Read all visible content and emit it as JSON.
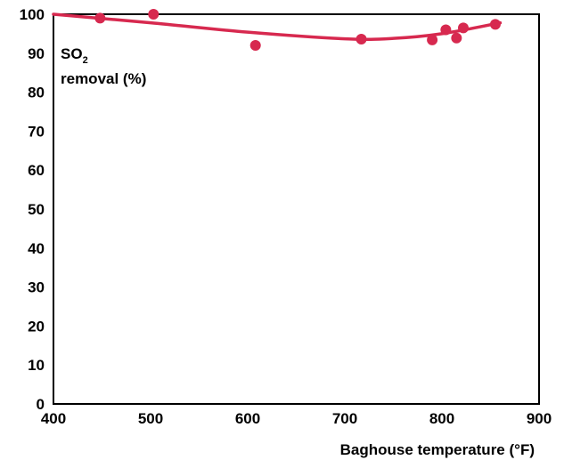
{
  "chart_data": {
    "type": "scatter",
    "xlabel": "Baghouse temperature (°F)",
    "ylabel_prefix": "SO",
    "ylabel_subscript": "2",
    "ylabel_line2": "removal (%)",
    "xlim": [
      400,
      900
    ],
    "ylim": [
      0,
      100
    ],
    "xticks": [
      400,
      500,
      600,
      700,
      800,
      900
    ],
    "yticks": [
      0,
      10,
      20,
      30,
      40,
      50,
      60,
      70,
      80,
      90,
      100
    ],
    "grid": false,
    "series": [
      {
        "color": "#d7294f",
        "points": [
          {
            "x": 448,
            "y": 99
          },
          {
            "x": 503,
            "y": 100
          },
          {
            "x": 608,
            "y": 92
          },
          {
            "x": 717,
            "y": 93.6
          },
          {
            "x": 790,
            "y": 93.4
          },
          {
            "x": 804,
            "y": 96
          },
          {
            "x": 815,
            "y": 93.9
          },
          {
            "x": 822,
            "y": 96.5
          },
          {
            "x": 855,
            "y": 97.4
          }
        ]
      }
    ],
    "trend": {
      "color": "#d7294f",
      "points": [
        {
          "x": 400,
          "y": 100
        },
        {
          "x": 500,
          "y": 97.8
        },
        {
          "x": 600,
          "y": 95.4
        },
        {
          "x": 700,
          "y": 93.7
        },
        {
          "x": 750,
          "y": 93.8
        },
        {
          "x": 800,
          "y": 95
        },
        {
          "x": 860,
          "y": 97.8
        }
      ]
    }
  }
}
